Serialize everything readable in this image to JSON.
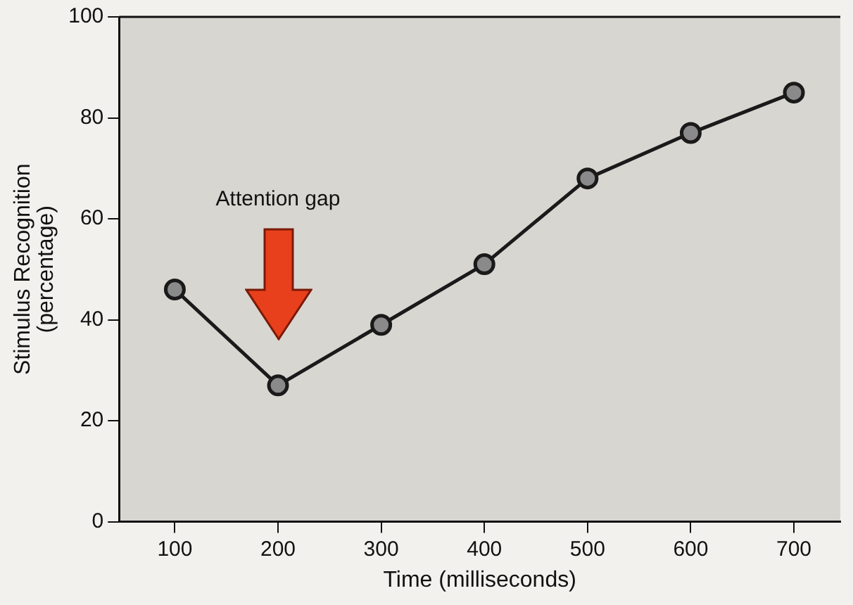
{
  "chart_data": {
    "type": "line",
    "xlabel": "Time (milliseconds)",
    "ylabel": "Stimulus Recognition (percentage)",
    "x": [
      100,
      200,
      300,
      400,
      500,
      600,
      700
    ],
    "series": [
      {
        "color": "#1a1a1a",
        "values": [
          46,
          27,
          39,
          51,
          68,
          77,
          85
        ]
      }
    ],
    "xlim": [
      46,
      745
    ],
    "xticks": [
      100,
      200,
      300,
      400,
      500,
      600,
      700
    ],
    "ylim": [
      0,
      100
    ],
    "yticks": [
      0,
      20,
      40,
      60,
      80,
      100
    ],
    "marker": "circle",
    "line_style": "solid",
    "grid": false,
    "legend": false,
    "annotations": [
      "Attention gap"
    ]
  }
}
